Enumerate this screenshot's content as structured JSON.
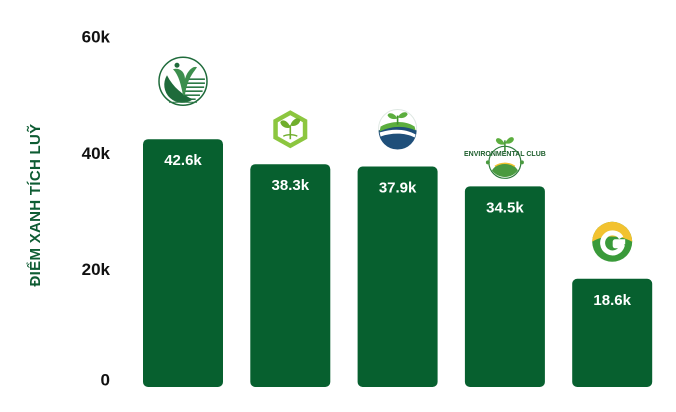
{
  "chart_data": {
    "type": "bar",
    "categories": [
      "",
      "",
      "",
      "",
      ""
    ],
    "values": [
      42.6,
      38.3,
      37.9,
      34.5,
      18.6
    ],
    "value_labels": [
      "42.6k",
      "38.3k",
      "37.9k",
      "34.5k",
      "18.6k"
    ],
    "ylabel": "ĐIỂM XANH TÍCH LUỸ",
    "ylim": [
      0,
      60
    ],
    "yticks": [
      0,
      20,
      40,
      60
    ],
    "ytick_labels": [
      "0",
      "20k",
      "40k",
      "60k"
    ],
    "grid": false,
    "legend": "none",
    "logo_icons": [
      "leaf-circle-logo",
      "hexagon-sprout-logo",
      "globe-sprout-logo",
      "environmental-club-logo",
      "green-g-logo"
    ],
    "logo_texts": [
      "",
      "",
      "",
      "ENVIRONMENTAL CLUB",
      ""
    ]
  },
  "colors": {
    "bar": "#07602f",
    "label": "#ffffff",
    "axis_title": "#0e5c33",
    "tick": "#111111"
  }
}
